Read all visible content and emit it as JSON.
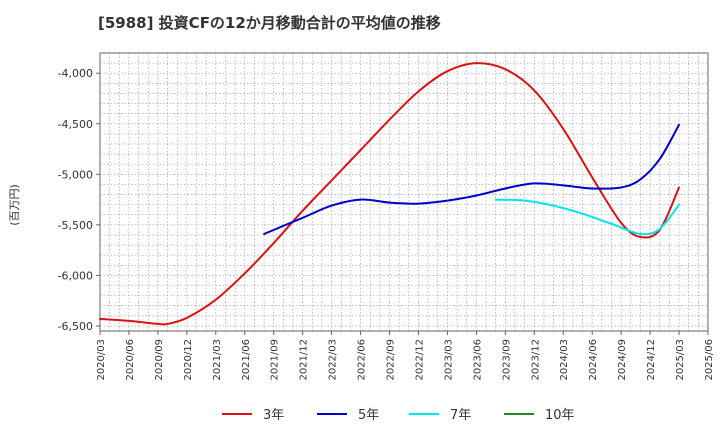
{
  "chart_data": {
    "type": "line",
    "title": "[5988]  投資CFの12か月移動合計の平均値の推移",
    "ylabel": "(百万円)",
    "xlabel": "",
    "ylim": [
      -6550,
      -3800
    ],
    "yticks": [
      -4000,
      -4500,
      -5000,
      -5500,
      -6000,
      -6500
    ],
    "ytick_labels": [
      "-4,000",
      "-4,500",
      "-5,000",
      "-5,500",
      "-6,000",
      "-6,500"
    ],
    "xlim": [
      "2020-03",
      "2025-06"
    ],
    "xtick_labels": [
      "2020/03",
      "2020/06",
      "2020/09",
      "2020/12",
      "2021/03",
      "2021/06",
      "2021/09",
      "2021/12",
      "2022/03",
      "2022/06",
      "2022/09",
      "2022/12",
      "2023/03",
      "2023/06",
      "2023/09",
      "2023/12",
      "2024/03",
      "2024/06",
      "2024/09",
      "2024/12",
      "2025/03",
      "2025/06"
    ],
    "grid": true,
    "legend_position": "bottom",
    "series": [
      {
        "name": "3年",
        "color": "#dd1111",
        "points": [
          [
            "2020-03",
            -6430
          ],
          [
            "2020-06",
            -6450
          ],
          [
            "2020-09",
            -6480
          ],
          [
            "2020-10",
            -6480
          ],
          [
            "2020-12",
            -6420
          ],
          [
            "2021-03",
            -6240
          ],
          [
            "2021-06",
            -5980
          ],
          [
            "2021-09",
            -5680
          ],
          [
            "2021-12",
            -5360
          ],
          [
            "2022-03",
            -5060
          ],
          [
            "2022-06",
            -4760
          ],
          [
            "2022-09",
            -4460
          ],
          [
            "2022-12",
            -4180
          ],
          [
            "2023-03",
            -3980
          ],
          [
            "2023-06",
            -3900
          ],
          [
            "2023-09",
            -3960
          ],
          [
            "2023-12",
            -4170
          ],
          [
            "2024-03",
            -4550
          ],
          [
            "2024-06",
            -5030
          ],
          [
            "2024-09",
            -5480
          ],
          [
            "2024-11",
            -5620
          ],
          [
            "2025-01",
            -5550
          ],
          [
            "2025-03",
            -5130
          ]
        ]
      },
      {
        "name": "5年",
        "color": "#0000cc",
        "points": [
          [
            "2021-08",
            -5590
          ],
          [
            "2021-12",
            -5430
          ],
          [
            "2022-03",
            -5310
          ],
          [
            "2022-06",
            -5250
          ],
          [
            "2022-09",
            -5280
          ],
          [
            "2022-12",
            -5290
          ],
          [
            "2023-03",
            -5260
          ],
          [
            "2023-06",
            -5210
          ],
          [
            "2023-09",
            -5140
          ],
          [
            "2023-12",
            -5090
          ],
          [
            "2024-03",
            -5110
          ],
          [
            "2024-06",
            -5140
          ],
          [
            "2024-09",
            -5130
          ],
          [
            "2024-11",
            -5050
          ],
          [
            "2025-01",
            -4850
          ],
          [
            "2025-03",
            -4510
          ]
        ]
      },
      {
        "name": "7年",
        "color": "#00e5ee",
        "points": [
          [
            "2023-08",
            -5250
          ],
          [
            "2023-11",
            -5260
          ],
          [
            "2024-02",
            -5310
          ],
          [
            "2024-05",
            -5390
          ],
          [
            "2024-08",
            -5490
          ],
          [
            "2024-11",
            -5590
          ],
          [
            "2025-01",
            -5540
          ],
          [
            "2025-03",
            -5300
          ]
        ]
      },
      {
        "name": "10年",
        "color": "#228822",
        "points": []
      }
    ]
  }
}
